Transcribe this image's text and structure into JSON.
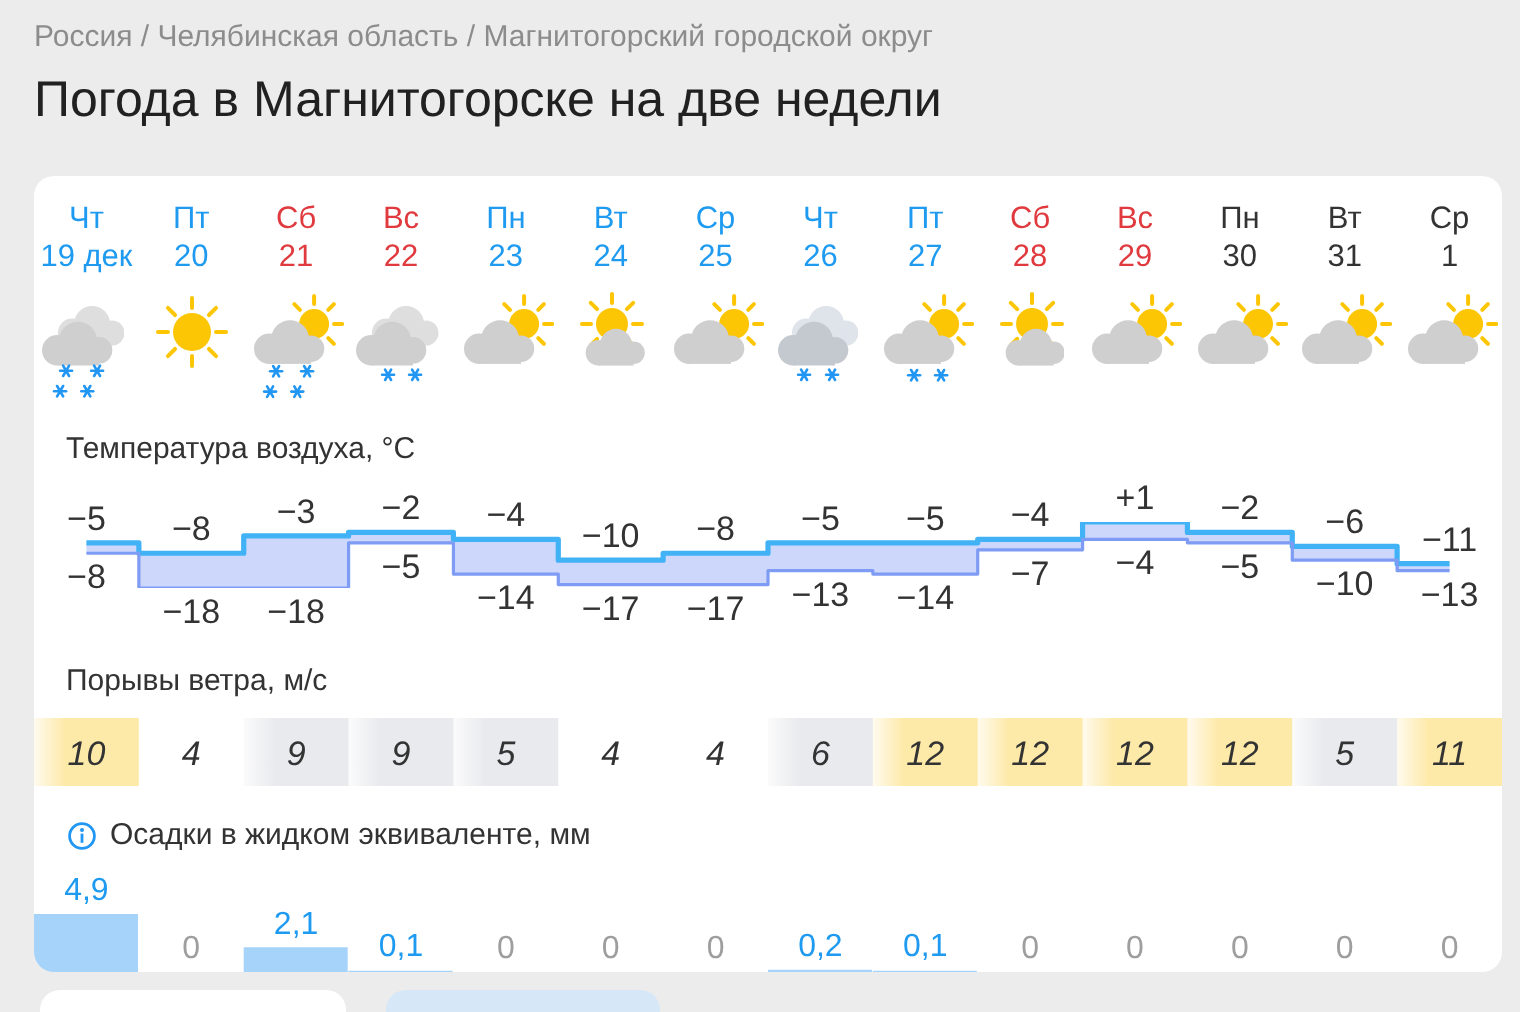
{
  "chart_data": [
    {
      "type": "other",
      "title": "Погода в Магнитогорске на две недели",
      "annotations": [
        "Россия / Челябинская область / Магнитогорский городской округ"
      ]
    },
    {
      "type": "step",
      "title": "Температура воздуха, °C",
      "categories": [
        "Чт\n19 дек",
        "Пт\n20",
        "Сб\n21",
        "Вс\n22",
        "Пн\n23",
        "Вт\n24",
        "Ср\n25",
        "Чт\n26",
        "Пт\n27",
        "Сб\n28",
        "Вс\n29",
        "Пн\n30",
        "Вт\n31",
        "Ср\n1"
      ],
      "tick_labels": "x",
      "series": [
        {
          "color": "#42b2f6",
          "values": [
            -5,
            -8,
            -3,
            -2,
            -4,
            -10,
            -8,
            -5,
            -5,
            -4,
            1,
            -2,
            -6,
            -11
          ],
          "value_labels": [
            "−5",
            "−8",
            "−3",
            "−2",
            "−4",
            "−10",
            "−8",
            "−5",
            "−5",
            "−4",
            "+1",
            "−2",
            "−6",
            "−11"
          ]
        },
        {
          "color": "#7f9cf5",
          "values": [
            -8,
            -18,
            -18,
            -5,
            -14,
            -17,
            -17,
            -13,
            -14,
            -7,
            -4,
            -5,
            -10,
            -13
          ],
          "value_labels": [
            "−8",
            "−18",
            "−18",
            "−5",
            "−14",
            "−17",
            "−17",
            "−13",
            "−14",
            "−7",
            "−4",
            "−5",
            "−10",
            "−13"
          ],
          "lower": [
            -8,
            -18,
            -18,
            -5,
            -14,
            -17,
            -17,
            -13,
            -14,
            -7,
            -4,
            -5,
            -10,
            -13
          ],
          "upper": [
            -5,
            -8,
            -3,
            -2,
            -4,
            -10,
            -8,
            -5,
            -5,
            -4,
            1,
            -2,
            -6,
            -11
          ]
        }
      ]
    },
    {
      "type": "heatmap",
      "title": "Порывы ветра, м/с",
      "categories": [
        null,
        null,
        null,
        null,
        null,
        null,
        null,
        null,
        null,
        null,
        null,
        null,
        null,
        null
      ],
      "y_categories": [
        null
      ],
      "tick_labels": false,
      "cells": [
        [
          10,
          4,
          9,
          9,
          5,
          4,
          4,
          6,
          12,
          12,
          12,
          12,
          5,
          11
        ]
      ],
      "colors": [
        "#fde9a8",
        "#ffffff",
        "#e9eaed",
        "#e9eaed",
        "#e9eaed",
        "#ffffff",
        "#ffffff",
        "#e9eaed",
        "#fde9a8",
        "#fde9a8",
        "#fde9a8",
        "#fde9a8",
        "#e9eaed",
        "#fde9a8"
      ],
      "data_labels": true
    },
    {
      "type": "bar",
      "title": "Осадки в жидком эквиваленте, мм",
      "categories": [
        null,
        null,
        null,
        null,
        null,
        null,
        null,
        null,
        null,
        null,
        null,
        null,
        null,
        null
      ],
      "tick_labels": false,
      "values": [
        4.9,
        0,
        2.1,
        0.1,
        0,
        0,
        0,
        0.2,
        0.1,
        0,
        0,
        0,
        0,
        0
      ],
      "color": "#a6d3fa",
      "value_labels": [
        "4,9",
        "0",
        "2,1",
        "0,1",
        "0",
        "0",
        "0",
        "0,2",
        "0,1",
        "0",
        "0",
        "0",
        "0",
        "0"
      ]
    }
  ]
}
